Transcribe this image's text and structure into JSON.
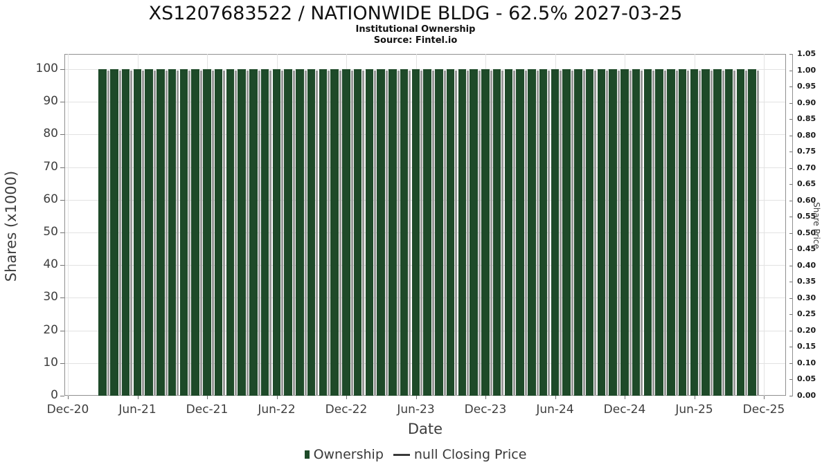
{
  "header": {
    "title": "XS1207683522 / NATIONWIDE BLDG - 62.5% 2027-03-25",
    "subtitle": "Institutional Ownership",
    "source": "Source: Fintel.io"
  },
  "chart_data": {
    "type": "bar",
    "title": "XS1207683522 / NATIONWIDE BLDG - 62.5% 2027-03-25",
    "subtitle": "Institutional Ownership",
    "source": "Source: Fintel.io",
    "xlabel": "Date",
    "ylabel_left": "Shares (x1000)",
    "ylabel_right": "Share Price",
    "grid": true,
    "legend_position": "bottom",
    "bar_color": "#1e4a29",
    "bar_shadow_color": "#999999",
    "x": [
      "Mar-21",
      "Apr-21",
      "May-21",
      "Jun-21",
      "Jul-21",
      "Aug-21",
      "Sep-21",
      "Oct-21",
      "Nov-21",
      "Dec-21",
      "Jan-22",
      "Feb-22",
      "Mar-22",
      "Apr-22",
      "May-22",
      "Jun-22",
      "Jul-22",
      "Aug-22",
      "Sep-22",
      "Oct-22",
      "Nov-22",
      "Dec-22",
      "Jan-23",
      "Feb-23",
      "Mar-23",
      "Apr-23",
      "May-23",
      "Jun-23",
      "Jul-23",
      "Aug-23",
      "Sep-23",
      "Oct-23",
      "Nov-23",
      "Dec-23",
      "Jan-24",
      "Feb-24",
      "Mar-24",
      "Apr-24",
      "May-24",
      "Jun-24",
      "Jul-24",
      "Aug-24",
      "Sep-24",
      "Oct-24",
      "Nov-24",
      "Dec-24",
      "Jan-25",
      "Feb-25",
      "Mar-25",
      "Apr-25",
      "May-25",
      "Jun-25",
      "Jul-25",
      "Aug-25",
      "Sep-25",
      "Oct-25",
      "Nov-25"
    ],
    "series": [
      {
        "name": "Ownership",
        "type": "bar",
        "color": "#1e4a29",
        "values": [
          100,
          100,
          100,
          100,
          100,
          100,
          100,
          100,
          100,
          100,
          100,
          100,
          100,
          100,
          100,
          100,
          100,
          100,
          100,
          100,
          100,
          100,
          100,
          100,
          100,
          100,
          100,
          100,
          100,
          100,
          100,
          100,
          100,
          100,
          100,
          100,
          100,
          100,
          100,
          100,
          100,
          100,
          100,
          100,
          100,
          100,
          100,
          100,
          100,
          100,
          100,
          100,
          100,
          100,
          100,
          100,
          100
        ]
      },
      {
        "name": "null Closing Price",
        "type": "line",
        "color": "#3a3a3a",
        "values": []
      }
    ],
    "x_ticks": [
      "Dec-20",
      "Jun-21",
      "Dec-21",
      "Jun-22",
      "Dec-22",
      "Jun-23",
      "Dec-23",
      "Jun-24",
      "Dec-24",
      "Jun-25",
      "Dec-25"
    ],
    "left_axis": {
      "ticks": [
        0,
        10,
        20,
        30,
        40,
        50,
        60,
        70,
        80,
        90,
        100
      ],
      "range": [
        0,
        104.7
      ]
    },
    "right_axis": {
      "ticks": [
        0.0,
        0.05,
        0.1,
        0.15,
        0.2,
        0.25,
        0.3,
        0.35,
        0.4,
        0.45,
        0.5,
        0.55,
        0.6,
        0.65,
        0.7,
        0.75,
        0.8,
        0.85,
        0.9,
        0.95,
        1.0,
        1.05
      ],
      "range": [
        0,
        1.05
      ]
    }
  },
  "legend": {
    "items": [
      {
        "label": "Ownership",
        "marker": "square",
        "color": "#1e4a29"
      },
      {
        "label": "null Closing Price",
        "marker": "dash",
        "color": "#3a3a3a"
      }
    ]
  }
}
